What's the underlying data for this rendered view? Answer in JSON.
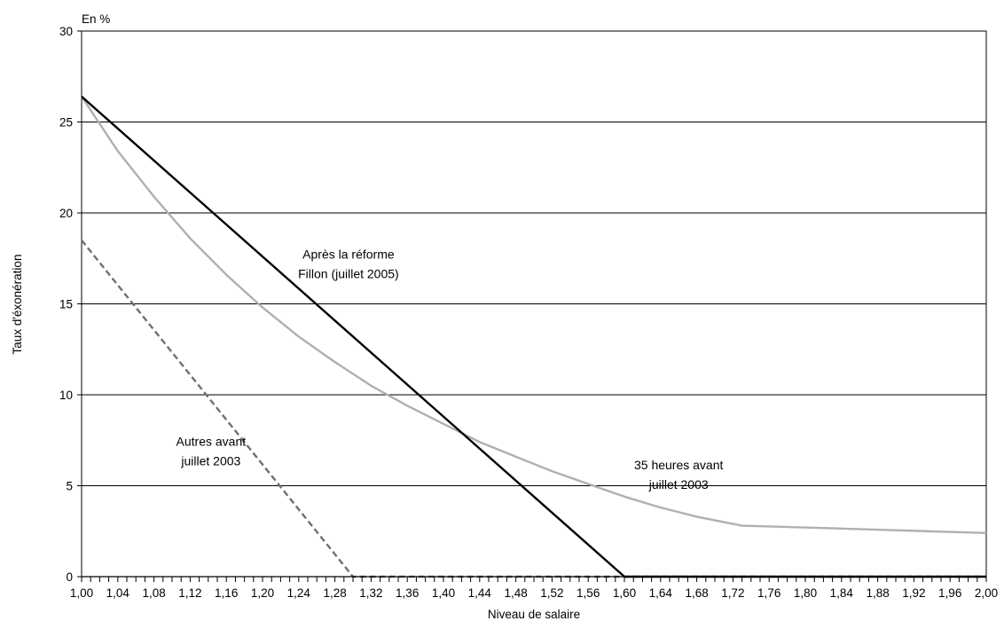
{
  "chart_data": {
    "type": "line",
    "unit_label": "En %",
    "xlabel": "Niveau de salaire",
    "ylabel": "Taux d'éxonération",
    "xlim": [
      1.0,
      2.0
    ],
    "ylim": [
      0,
      30
    ],
    "y_ticks": [
      0,
      5,
      10,
      15,
      20,
      25,
      30
    ],
    "y_tick_labels": [
      "0",
      "5",
      "10",
      "15",
      "20",
      "25",
      "30"
    ],
    "x_ticks": [
      1.0,
      1.04,
      1.08,
      1.12,
      1.16,
      1.2,
      1.24,
      1.28,
      1.32,
      1.36,
      1.4,
      1.44,
      1.48,
      1.52,
      1.56,
      1.6,
      1.64,
      1.68,
      1.72,
      1.76,
      1.8,
      1.84,
      1.88,
      1.92,
      1.96,
      2.0
    ],
    "x_tick_labels": [
      "1,00",
      "1,04",
      "1,08",
      "1,12",
      "1,16",
      "1,20",
      "1,24",
      "1,28",
      "1,32",
      "1,36",
      "1,40",
      "1,44",
      "1,48",
      "1,52",
      "1,56",
      "1,60",
      "1,64",
      "1,68",
      "1,72",
      "1,76",
      "1,80",
      "1,84",
      "1,88",
      "1,92",
      "1,96",
      "2,00"
    ],
    "grid": {
      "horizontal": true,
      "vertical": false
    },
    "series": [
      {
        "name": "Après la réforme Fillon (juillet 2005)",
        "color": "#000000",
        "dash": "solid",
        "points": [
          [
            1.0,
            26.4
          ],
          [
            1.6,
            0.0
          ],
          [
            2.0,
            0.0
          ]
        ]
      },
      {
        "name": "35 heures avant juillet 2003",
        "color": "#b0b0b0",
        "dash": "solid",
        "points": [
          [
            1.0,
            26.4
          ],
          [
            1.04,
            23.4
          ],
          [
            1.08,
            20.9
          ],
          [
            1.12,
            18.6
          ],
          [
            1.16,
            16.6
          ],
          [
            1.2,
            14.8
          ],
          [
            1.24,
            13.2
          ],
          [
            1.28,
            11.8
          ],
          [
            1.32,
            10.5
          ],
          [
            1.36,
            9.4
          ],
          [
            1.4,
            8.4
          ],
          [
            1.44,
            7.4
          ],
          [
            1.48,
            6.6
          ],
          [
            1.52,
            5.8
          ],
          [
            1.56,
            5.1
          ],
          [
            1.6,
            4.4
          ],
          [
            1.64,
            3.8
          ],
          [
            1.68,
            3.3
          ],
          [
            1.73,
            2.8
          ],
          [
            1.8,
            2.7
          ],
          [
            1.9,
            2.55
          ],
          [
            2.0,
            2.4
          ]
        ]
      },
      {
        "name": "Autres avant juillet 2003",
        "color": "#707070",
        "dash": "dashed",
        "points": [
          [
            1.0,
            18.5
          ],
          [
            1.3,
            0.0
          ],
          [
            2.0,
            0.0
          ]
        ]
      }
    ],
    "annotations": [
      {
        "lines": [
          "Après la réforme",
          "Fillon (juillet 2005)"
        ],
        "x": 1.295,
        "y": 17.5
      },
      {
        "lines": [
          "35 heures avant",
          "juillet 2003"
        ],
        "x": 1.66,
        "y": 5.9
      },
      {
        "lines": [
          "Autres avant",
          "juillet 2003"
        ],
        "x": 1.143,
        "y": 7.2
      }
    ]
  }
}
